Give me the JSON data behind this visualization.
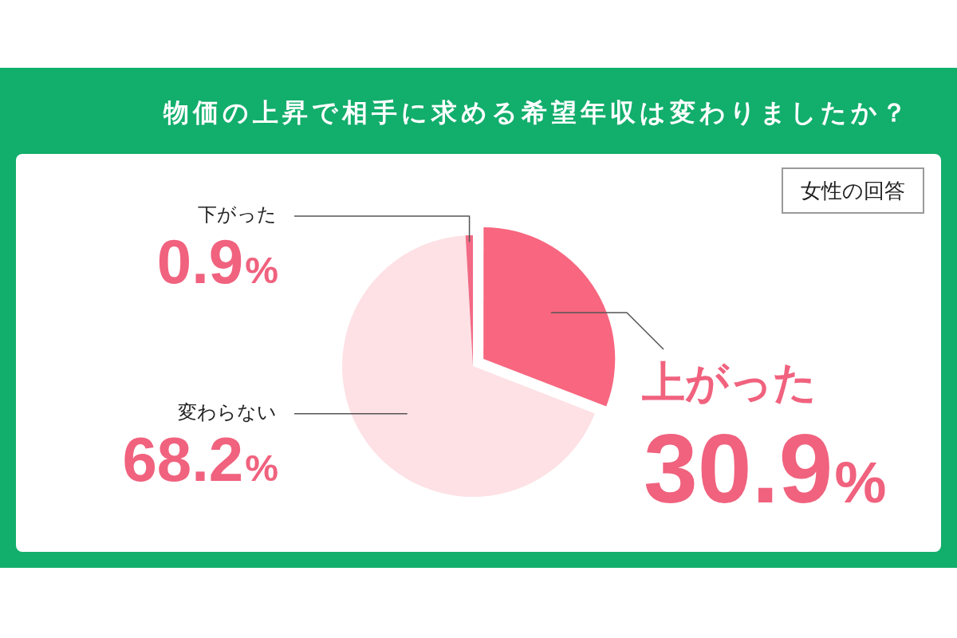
{
  "chart_data": {
    "type": "pie",
    "title": "物価の上昇で相手に求める希望年収は変わりましたか？",
    "annotations": [
      "女性の回答"
    ],
    "categories": [
      "上がった",
      "変わらない",
      "下がった"
    ],
    "values": [
      30.9,
      68.2,
      0.9
    ],
    "colors": [
      "#f8667f",
      "#fde1e5",
      "#f26a84"
    ],
    "value_labels": [
      "30.9%",
      "68.2%",
      "0.9%"
    ]
  }
}
